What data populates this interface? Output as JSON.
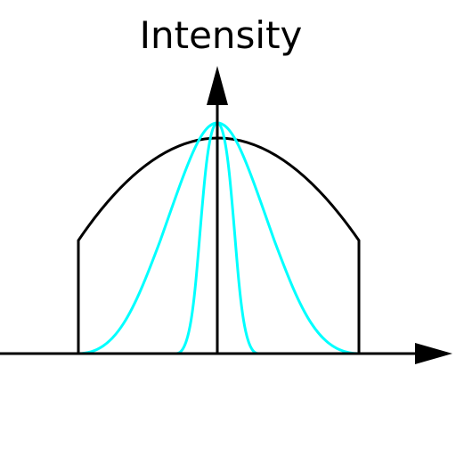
{
  "diagram": {
    "title": "Intensity",
    "colors": {
      "axis": "#000000",
      "envelope": "#000000",
      "profiles": "#00ffff",
      "background": "#ffffff"
    },
    "curves": [
      {
        "name": "envelope",
        "type": "clipped-parabola"
      },
      {
        "name": "wide-profile",
        "type": "bell"
      },
      {
        "name": "narrow-profile",
        "type": "bell"
      }
    ]
  }
}
